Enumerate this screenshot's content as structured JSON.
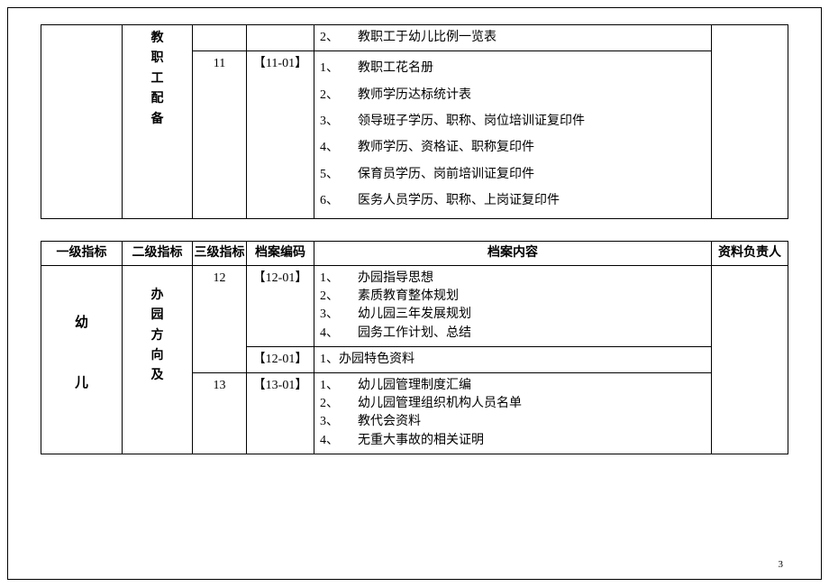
{
  "page_number": "3",
  "colors": {
    "border": "#000000",
    "text": "#000000",
    "bg": "#ffffff"
  },
  "fonts": {
    "family": "SimSun",
    "base_size_pt": 10.5
  },
  "table1": {
    "l2": {
      "chars": [
        "教",
        "职",
        "工",
        "配",
        "备"
      ]
    },
    "row0": {
      "content_items": [
        {
          "n": "2、",
          "t": "教职工于幼儿比例一览表"
        }
      ]
    },
    "row1": {
      "l3": "11",
      "code": "【11-01】",
      "content_items": [
        {
          "n": "1、",
          "t": "教职工花名册"
        },
        {
          "n": "2、",
          "t": "教师学历达标统计表"
        },
        {
          "n": "3、",
          "t": "领导班子学历、职称、岗位培训证复印件"
        },
        {
          "n": "4、",
          "t": "教师学历、资格证、职称复印件"
        },
        {
          "n": "5、",
          "t": "保育员学历、岗前培训证复印件"
        },
        {
          "n": "6、",
          "t": "医务人员学历、职称、上岗证复印件"
        }
      ]
    }
  },
  "table2": {
    "headers": {
      "l1": "一级指标",
      "l2": "二级指标",
      "l3": "三级指标",
      "code": "档案编码",
      "content": "档案内容",
      "owner": "资料负责人"
    },
    "l1": {
      "line1": "幼",
      "line2": "儿"
    },
    "l2": {
      "chars": [
        "办",
        "园",
        "方",
        "向",
        "及"
      ]
    },
    "rows": [
      {
        "l3": "12",
        "code": "【12-01】",
        "content_items": [
          {
            "n": "1、",
            "t": "办园指导思想"
          },
          {
            "n": "2、",
            "t": "素质教育整体规划"
          },
          {
            "n": "3、",
            "t": "幼儿园三年发展规划"
          },
          {
            "n": "4、",
            "t": "园务工作计划、总结"
          }
        ]
      },
      {
        "code": "【12-01】",
        "content_single": "1、办园特色资料"
      },
      {
        "l3": "13",
        "code": "【13-01】",
        "content_items": [
          {
            "n": "1、",
            "t": "幼儿园管理制度汇编"
          },
          {
            "n": "2、",
            "t": "幼儿园管理组织机构人员名单"
          },
          {
            "n": "3、",
            "t": "教代会资料"
          },
          {
            "n": "4、",
            "t": "无重大事故的相关证明"
          }
        ]
      }
    ]
  }
}
